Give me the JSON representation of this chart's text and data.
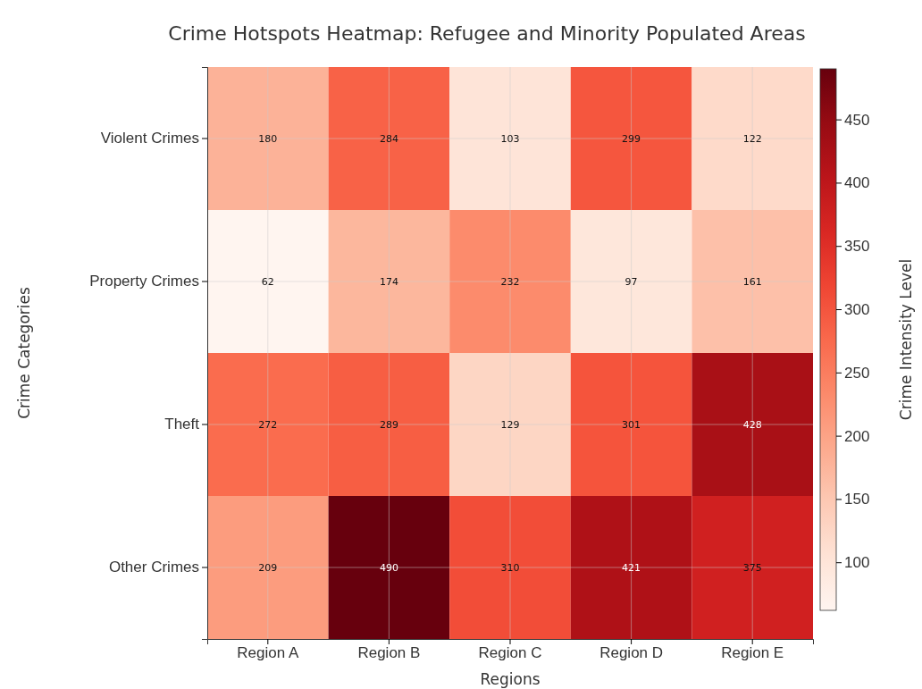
{
  "chart_data": {
    "type": "heatmap",
    "title": "Crime Hotspots Heatmap: Refugee and Minority Populated Areas",
    "xlabel": "Regions",
    "ylabel": "Crime Categories",
    "clabel": "Crime Intensity Level",
    "categories": [
      "Region A",
      "Region B",
      "Region C",
      "Region D",
      "Region E"
    ],
    "y_categories": [
      "Violent Crimes",
      "Property Crimes",
      "Theft",
      "Other Crimes"
    ],
    "cells": [
      [
        180,
        284,
        103,
        299,
        122
      ],
      [
        62,
        174,
        232,
        97,
        161
      ],
      [
        272,
        289,
        129,
        301,
        428
      ],
      [
        209,
        490,
        310,
        421,
        375
      ]
    ],
    "data_labels": true,
    "clim": [
      62,
      490
    ],
    "cticks": [
      100,
      150,
      200,
      250,
      300,
      350,
      400,
      450
    ],
    "grid": true
  }
}
